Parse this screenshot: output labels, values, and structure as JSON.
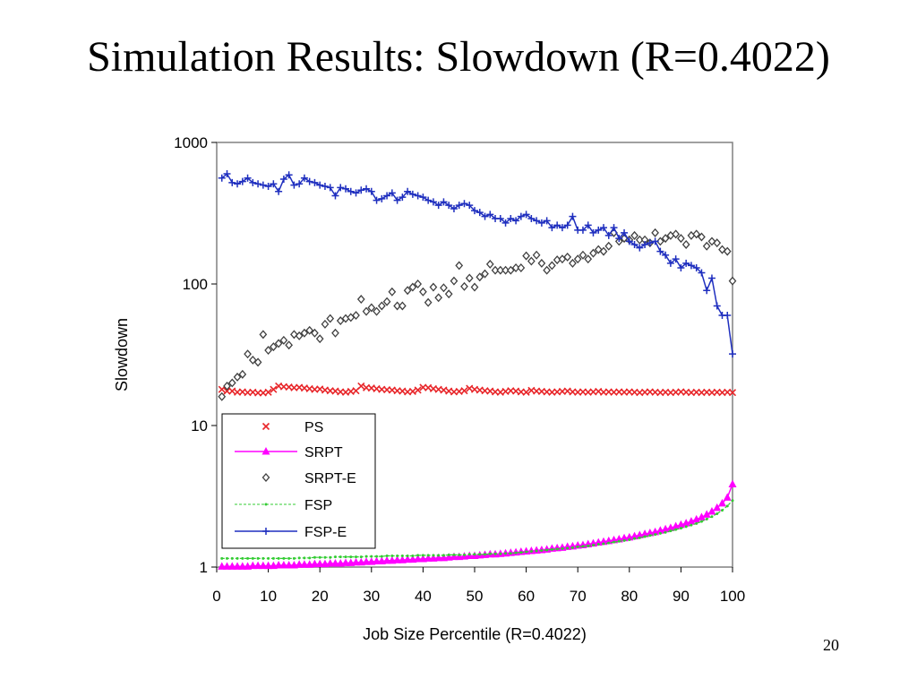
{
  "slide": {
    "title": "Simulation Results: Slowdown (R=0.4022)",
    "page_number": "20"
  },
  "chart_data": {
    "type": "line",
    "xlabel": "Job Size Percentile (R=0.4022)",
    "ylabel": "Slowdown",
    "xlim": [
      0,
      100
    ],
    "ylim": [
      1,
      1000
    ],
    "yscale": "log",
    "xticks": [
      "0",
      "10",
      "20",
      "30",
      "40",
      "50",
      "60",
      "70",
      "80",
      "90",
      "100"
    ],
    "yticks": [
      "1",
      "10",
      "100",
      "1000"
    ],
    "grid": false,
    "legend_position": "bottom-left",
    "x": [
      1,
      2,
      3,
      4,
      5,
      6,
      7,
      8,
      9,
      10,
      11,
      12,
      13,
      14,
      15,
      16,
      17,
      18,
      19,
      20,
      21,
      22,
      23,
      24,
      25,
      26,
      27,
      28,
      29,
      30,
      31,
      32,
      33,
      34,
      35,
      36,
      37,
      38,
      39,
      40,
      41,
      42,
      43,
      44,
      45,
      46,
      47,
      48,
      49,
      50,
      51,
      52,
      53,
      54,
      55,
      56,
      57,
      58,
      59,
      60,
      61,
      62,
      63,
      64,
      65,
      66,
      67,
      68,
      69,
      70,
      71,
      72,
      73,
      74,
      75,
      76,
      77,
      78,
      79,
      80,
      81,
      82,
      83,
      84,
      85,
      86,
      87,
      88,
      89,
      90,
      91,
      92,
      93,
      94,
      95,
      96,
      97,
      98,
      99,
      100
    ],
    "series": [
      {
        "name": "PS",
        "color": "#e8262a",
        "marker": "x",
        "line": false,
        "values": [
          18,
          17.5,
          17.5,
          17.2,
          17.3,
          17.1,
          17.2,
          17,
          17,
          17.2,
          18,
          19,
          18.8,
          18.7,
          18.5,
          18.6,
          18.4,
          18.2,
          18,
          18.1,
          17.8,
          17.6,
          17.5,
          17.3,
          17.2,
          17.4,
          17.6,
          19,
          18.5,
          18.4,
          18.2,
          18,
          17.9,
          17.8,
          17.6,
          17.5,
          17.3,
          17.4,
          17.8,
          18.6,
          18.5,
          18.2,
          18,
          17.8,
          17.5,
          17.3,
          17.4,
          17.6,
          18.3,
          18,
          17.8,
          17.6,
          17.5,
          17.3,
          17.2,
          17.4,
          17.6,
          17.5,
          17.3,
          17.2,
          17.7,
          17.5,
          17.4,
          17.3,
          17.2,
          17.3,
          17.4,
          17.5,
          17.3,
          17.2,
          17.3,
          17.2,
          17.3,
          17.4,
          17.2,
          17.3,
          17.2,
          17.3,
          17.2,
          17.3,
          17.2,
          17.1,
          17.2,
          17.3,
          17.2,
          17.1,
          17.2,
          17.1,
          17.2,
          17.3,
          17.2,
          17.1,
          17.2,
          17.1,
          17.2,
          17.1,
          17.2,
          17.1,
          17.2,
          17.1
        ]
      },
      {
        "name": "SRPT",
        "color": "#ff00ff",
        "marker": "triangle",
        "line": true,
        "values": [
          1.01,
          1.01,
          1.01,
          1.01,
          1.01,
          1.01,
          1.02,
          1.02,
          1.02,
          1.02,
          1.02,
          1.03,
          1.03,
          1.03,
          1.03,
          1.04,
          1.04,
          1.04,
          1.05,
          1.05,
          1.05,
          1.06,
          1.06,
          1.06,
          1.07,
          1.07,
          1.08,
          1.08,
          1.09,
          1.09,
          1.1,
          1.1,
          1.11,
          1.11,
          1.12,
          1.12,
          1.13,
          1.13,
          1.14,
          1.14,
          1.15,
          1.15,
          1.16,
          1.16,
          1.17,
          1.18,
          1.18,
          1.19,
          1.2,
          1.2,
          1.21,
          1.22,
          1.23,
          1.23,
          1.24,
          1.25,
          1.26,
          1.27,
          1.28,
          1.29,
          1.3,
          1.31,
          1.32,
          1.33,
          1.35,
          1.36,
          1.37,
          1.39,
          1.4,
          1.42,
          1.43,
          1.45,
          1.47,
          1.49,
          1.51,
          1.53,
          1.55,
          1.57,
          1.6,
          1.62,
          1.65,
          1.68,
          1.71,
          1.74,
          1.77,
          1.81,
          1.85,
          1.89,
          1.94,
          1.99,
          2.04,
          2.1,
          2.17,
          2.25,
          2.35,
          2.47,
          2.62,
          2.82,
          3.1,
          3.85
        ]
      },
      {
        "name": "SRPT-E",
        "color": "#404040",
        "marker": "diamond",
        "line": false,
        "values": [
          16,
          19,
          20,
          22,
          23,
          32,
          29,
          28,
          44,
          34,
          36,
          38,
          40,
          37,
          44,
          43,
          45,
          47,
          45,
          41,
          52,
          57,
          45,
          55,
          57,
          58,
          60,
          78,
          64,
          68,
          64,
          70,
          75,
          88,
          70,
          70,
          90,
          95,
          100,
          88,
          74,
          95,
          80,
          94,
          85,
          105,
          135,
          96,
          110,
          95,
          112,
          118,
          138,
          125,
          125,
          125,
          125,
          130,
          130,
          158,
          145,
          160,
          140,
          125,
          135,
          148,
          150,
          155,
          140,
          150,
          160,
          150,
          165,
          175,
          170,
          185,
          230,
          200,
          210,
          205,
          220,
          205,
          205,
          195,
          230,
          200,
          210,
          220,
          225,
          210,
          190,
          220,
          225,
          215,
          185,
          200,
          195,
          175,
          170,
          105
        ]
      },
      {
        "name": "FSP",
        "color": "#33cc33",
        "marker": "dot",
        "line": true,
        "values": [
          1.15,
          1.15,
          1.15,
          1.15,
          1.15,
          1.15,
          1.15,
          1.15,
          1.15,
          1.15,
          1.15,
          1.15,
          1.15,
          1.15,
          1.15,
          1.16,
          1.16,
          1.16,
          1.17,
          1.17,
          1.17,
          1.17,
          1.18,
          1.18,
          1.18,
          1.18,
          1.18,
          1.18,
          1.19,
          1.19,
          1.19,
          1.19,
          1.2,
          1.2,
          1.2,
          1.2,
          1.2,
          1.2,
          1.21,
          1.21,
          1.21,
          1.21,
          1.21,
          1.21,
          1.22,
          1.22,
          1.22,
          1.22,
          1.23,
          1.23,
          1.23,
          1.23,
          1.24,
          1.24,
          1.24,
          1.25,
          1.25,
          1.26,
          1.27,
          1.28,
          1.29,
          1.3,
          1.31,
          1.32,
          1.33,
          1.34,
          1.35,
          1.36,
          1.37,
          1.39,
          1.4,
          1.41,
          1.43,
          1.45,
          1.46,
          1.48,
          1.5,
          1.52,
          1.54,
          1.56,
          1.59,
          1.61,
          1.64,
          1.67,
          1.7,
          1.73,
          1.76,
          1.8,
          1.84,
          1.88,
          1.93,
          1.98,
          2.03,
          2.1,
          2.18,
          2.27,
          2.38,
          2.52,
          2.7,
          2.95
        ]
      },
      {
        "name": "FSP-E",
        "color": "#1f2fbf",
        "marker": "plus",
        "line": true,
        "values": [
          560,
          600,
          520,
          510,
          530,
          560,
          520,
          510,
          500,
          490,
          510,
          450,
          550,
          590,
          500,
          510,
          560,
          530,
          520,
          500,
          490,
          480,
          420,
          480,
          470,
          450,
          440,
          460,
          470,
          450,
          390,
          400,
          420,
          440,
          390,
          410,
          450,
          430,
          420,
          410,
          390,
          380,
          360,
          380,
          360,
          340,
          360,
          370,
          360,
          330,
          320,
          300,
          310,
          290,
          290,
          270,
          290,
          280,
          300,
          310,
          290,
          280,
          270,
          280,
          250,
          260,
          250,
          260,
          300,
          240,
          240,
          260,
          230,
          240,
          250,
          220,
          250,
          210,
          230,
          200,
          190,
          180,
          190,
          195,
          200,
          170,
          160,
          140,
          150,
          130,
          140,
          135,
          130,
          120,
          90,
          110,
          70,
          60,
          60,
          32
        ]
      }
    ]
  }
}
